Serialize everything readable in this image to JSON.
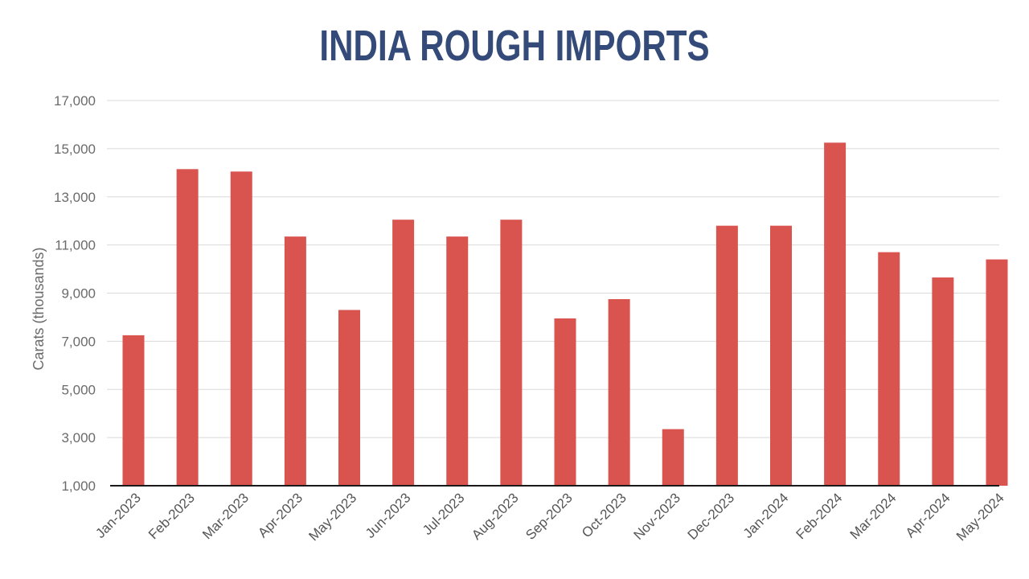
{
  "chart_data": {
    "type": "bar",
    "title": "INDIA ROUGH IMPORTS",
    "xlabel": "",
    "ylabel": "Carats (thousands)",
    "ylim": [
      1000,
      17000
    ],
    "yticks": [
      1000,
      3000,
      5000,
      7000,
      9000,
      11000,
      13000,
      15000,
      17000
    ],
    "ytick_labels": [
      "1,000",
      "3,000",
      "5,000",
      "7,000",
      "9,000",
      "11,000",
      "13,000",
      "15,000",
      "17,000"
    ],
    "grid": true,
    "bar_color": "#d9534f",
    "title_color": "#344a78",
    "categories": [
      "Jan-2023",
      "Feb-2023",
      "Mar-2023",
      "Apr-2023",
      "May-2023",
      "Jun-2023",
      "Jul-2023",
      "Aug-2023",
      "Sep-2023",
      "Oct-2023",
      "Nov-2023",
      "Dec-2023",
      "Jan-2024",
      "Feb-2024",
      "Mar-2024",
      "Apr-2024",
      "May-2024"
    ],
    "values": [
      7250,
      14150,
      14050,
      11350,
      8300,
      12050,
      11350,
      12050,
      7950,
      8750,
      3350,
      11800,
      11800,
      15250,
      10700,
      9650,
      10400
    ]
  }
}
